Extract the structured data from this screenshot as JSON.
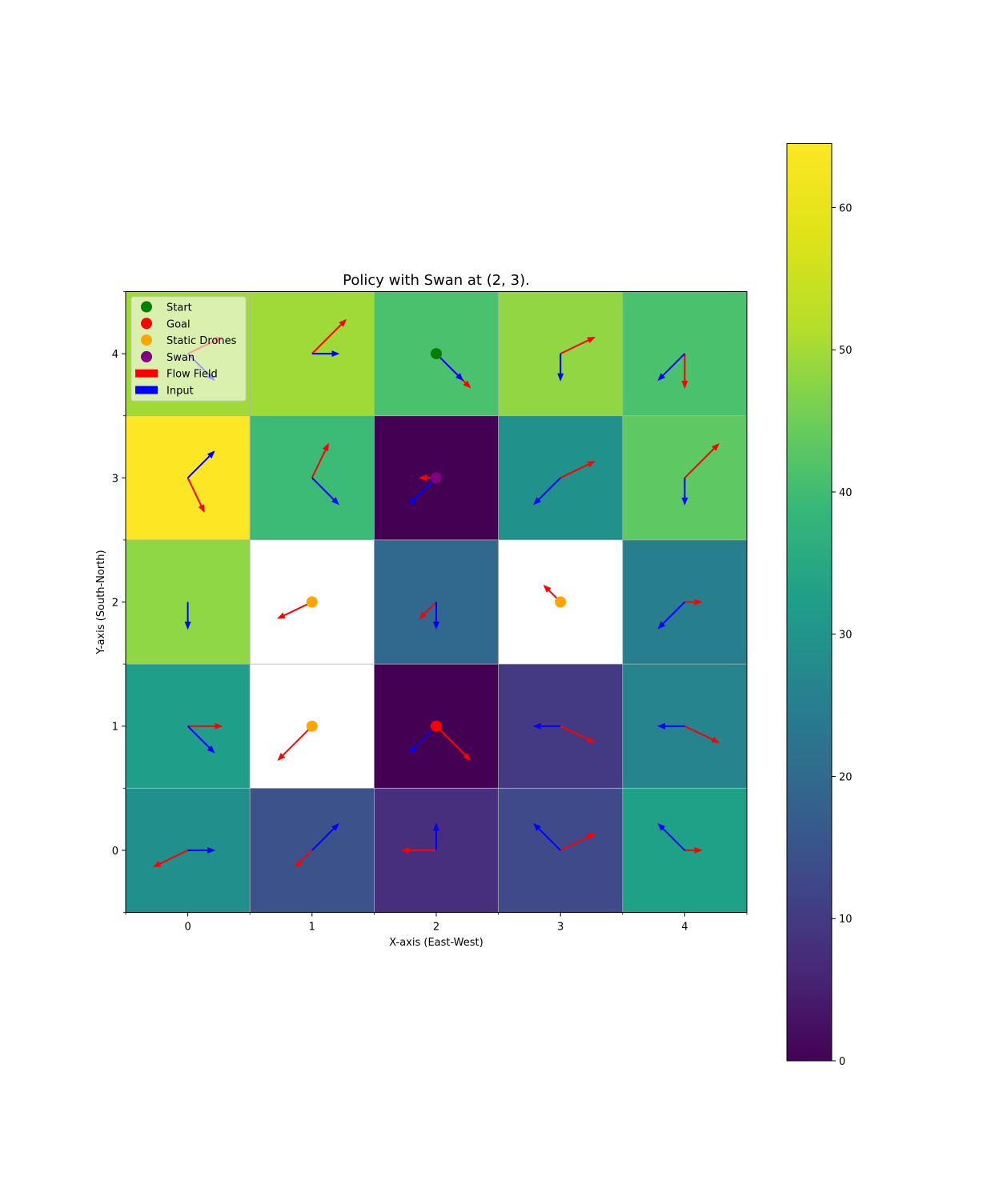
{
  "chart_data": {
    "type": "heatmap",
    "title": "Policy with Swan at (2, 3).",
    "xlabel": "X-axis (East-West)",
    "ylabel": "Y-axis (South-North)",
    "xticks": [
      "0",
      "1",
      "2",
      "3",
      "4"
    ],
    "yticks": [
      "0",
      "1",
      "2",
      "3",
      "4"
    ],
    "xlim": [
      -0.5,
      4.5
    ],
    "ylim": [
      -0.5,
      4.5
    ],
    "colormap": "viridis",
    "colorbar": {
      "range": [
        0,
        64.5
      ],
      "ticks": [
        "0",
        "10",
        "20",
        "30",
        "40",
        "50",
        "60"
      ]
    },
    "values": [
      [
        32,
        15,
        11,
        13,
        38
      ],
      [
        36,
        null,
        0,
        10,
        30
      ],
      [
        54,
        null,
        19,
        null,
        28
      ],
      [
        64.5,
        42,
        0,
        34,
        50
      ],
      [
        55,
        55,
        46,
        54,
        46
      ]
    ],
    "cell_colors_hex": [
      [
        "#21908d",
        "#3b528b",
        "#472f7d",
        "#3e4a89",
        "#1fa188"
      ],
      [
        "#1f9e89",
        "#ffffff",
        "#440154",
        "#443983",
        "#25848e"
      ],
      [
        "#8fd744",
        "#ffffff",
        "#31688e",
        "#ffffff",
        "#277f8e"
      ],
      [
        "#fde725",
        "#3bbb75",
        "#440154",
        "#21918c",
        "#5ec962"
      ],
      [
        "#a0da39",
        "#a0da39",
        "#4ac16d",
        "#90d743",
        "#4ac16d"
      ]
    ],
    "flow_field": [
      {
        "x": 0,
        "y": 0,
        "dx": -0.27,
        "dy": -0.13
      },
      {
        "x": 1,
        "y": 0,
        "dx": -0.13,
        "dy": -0.13
      },
      {
        "x": 2,
        "y": 0,
        "dx": -0.27,
        "dy": 0
      },
      {
        "x": 3,
        "y": 0,
        "dx": 0.27,
        "dy": 0.13
      },
      {
        "x": 4,
        "y": 0,
        "dx": 0.13,
        "dy": 0
      },
      {
        "x": 0,
        "y": 1,
        "dx": 0.27,
        "dy": 0
      },
      {
        "x": 1,
        "y": 1,
        "dx": -0.27,
        "dy": -0.27
      },
      {
        "x": 2,
        "y": 1,
        "dx": 0.27,
        "dy": -0.27
      },
      {
        "x": 3,
        "y": 1,
        "dx": 0.27,
        "dy": -0.13
      },
      {
        "x": 4,
        "y": 1,
        "dx": 0.27,
        "dy": -0.13
      },
      {
        "x": 1,
        "y": 2,
        "dx": -0.27,
        "dy": -0.13
      },
      {
        "x": 2,
        "y": 2,
        "dx": -0.13,
        "dy": -0.13
      },
      {
        "x": 3,
        "y": 2,
        "dx": -0.13,
        "dy": 0.13
      },
      {
        "x": 4,
        "y": 2,
        "dx": 0.13,
        "dy": 0
      },
      {
        "x": 0,
        "y": 3,
        "dx": 0.13,
        "dy": -0.27
      },
      {
        "x": 1,
        "y": 3,
        "dx": 0.13,
        "dy": 0.27
      },
      {
        "x": 2,
        "y": 3,
        "dx": -0.13,
        "dy": 0
      },
      {
        "x": 3,
        "y": 3,
        "dx": 0.27,
        "dy": 0.13
      },
      {
        "x": 4,
        "y": 3,
        "dx": 0.27,
        "dy": 0.27
      },
      {
        "x": 0,
        "y": 4,
        "dx": 0.27,
        "dy": 0.13
      },
      {
        "x": 1,
        "y": 4,
        "dx": 0.27,
        "dy": 0.27
      },
      {
        "x": 2,
        "y": 4,
        "dx": 0.27,
        "dy": -0.27
      },
      {
        "x": 3,
        "y": 4,
        "dx": 0.27,
        "dy": 0.13
      },
      {
        "x": 4,
        "y": 4,
        "dx": 0,
        "dy": -0.27
      }
    ],
    "input": [
      {
        "x": 0,
        "y": 0,
        "dx": 0.21,
        "dy": 0
      },
      {
        "x": 1,
        "y": 0,
        "dx": 0.21,
        "dy": 0.21
      },
      {
        "x": 2,
        "y": 0,
        "dx": 0,
        "dy": 0.21
      },
      {
        "x": 3,
        "y": 0,
        "dx": -0.21,
        "dy": 0.21
      },
      {
        "x": 4,
        "y": 0,
        "dx": -0.21,
        "dy": 0.21
      },
      {
        "x": 0,
        "y": 1,
        "dx": 0.21,
        "dy": -0.21
      },
      {
        "x": 2,
        "y": 1,
        "dx": -0.21,
        "dy": -0.21
      },
      {
        "x": 3,
        "y": 1,
        "dx": -0.21,
        "dy": 0
      },
      {
        "x": 4,
        "y": 1,
        "dx": -0.21,
        "dy": 0
      },
      {
        "x": 0,
        "y": 2,
        "dx": 0,
        "dy": -0.21
      },
      {
        "x": 2,
        "y": 2,
        "dx": 0,
        "dy": -0.21
      },
      {
        "x": 4,
        "y": 2,
        "dx": -0.21,
        "dy": -0.21
      },
      {
        "x": 0,
        "y": 3,
        "dx": 0.21,
        "dy": 0.21
      },
      {
        "x": 1,
        "y": 3,
        "dx": 0.21,
        "dy": -0.21
      },
      {
        "x": 2,
        "y": 3,
        "dx": -0.21,
        "dy": -0.21
      },
      {
        "x": 3,
        "y": 3,
        "dx": -0.21,
        "dy": -0.21
      },
      {
        "x": 4,
        "y": 3,
        "dx": 0,
        "dy": -0.21
      },
      {
        "x": 0,
        "y": 4,
        "dx": 0.21,
        "dy": -0.21
      },
      {
        "x": 1,
        "y": 4,
        "dx": 0.21,
        "dy": 0
      },
      {
        "x": 2,
        "y": 4,
        "dx": 0.21,
        "dy": -0.21
      },
      {
        "x": 3,
        "y": 4,
        "dx": 0,
        "dy": -0.21
      },
      {
        "x": 4,
        "y": 4,
        "dx": -0.21,
        "dy": -0.21
      }
    ],
    "points": {
      "start": {
        "x": 2,
        "y": 4,
        "color": "#008000"
      },
      "goal": {
        "x": 2,
        "y": 1,
        "color": "#ff0000"
      },
      "static_drones": [
        {
          "x": 1,
          "y": 2
        },
        {
          "x": 3,
          "y": 2
        },
        {
          "x": 1,
          "y": 1
        }
      ],
      "static_drones_color": "#ffa500",
      "swan": {
        "x": 2,
        "y": 3,
        "color": "#800080"
      }
    },
    "legend": {
      "placement": "upper-left",
      "entries": [
        {
          "label": "Start",
          "marker": "circle",
          "color": "#008000"
        },
        {
          "label": "Goal",
          "marker": "circle",
          "color": "#ff0000"
        },
        {
          "label": "Static Drones",
          "marker": "circle",
          "color": "#ffa500"
        },
        {
          "label": "Swan",
          "marker": "circle",
          "color": "#800080"
        },
        {
          "label": "Flow Field",
          "marker": "bar",
          "color": "#ff0000"
        },
        {
          "label": "Input",
          "marker": "bar",
          "color": "#0000ff"
        }
      ]
    },
    "flow_color": "#ff0000",
    "input_color": "#0000ff"
  }
}
